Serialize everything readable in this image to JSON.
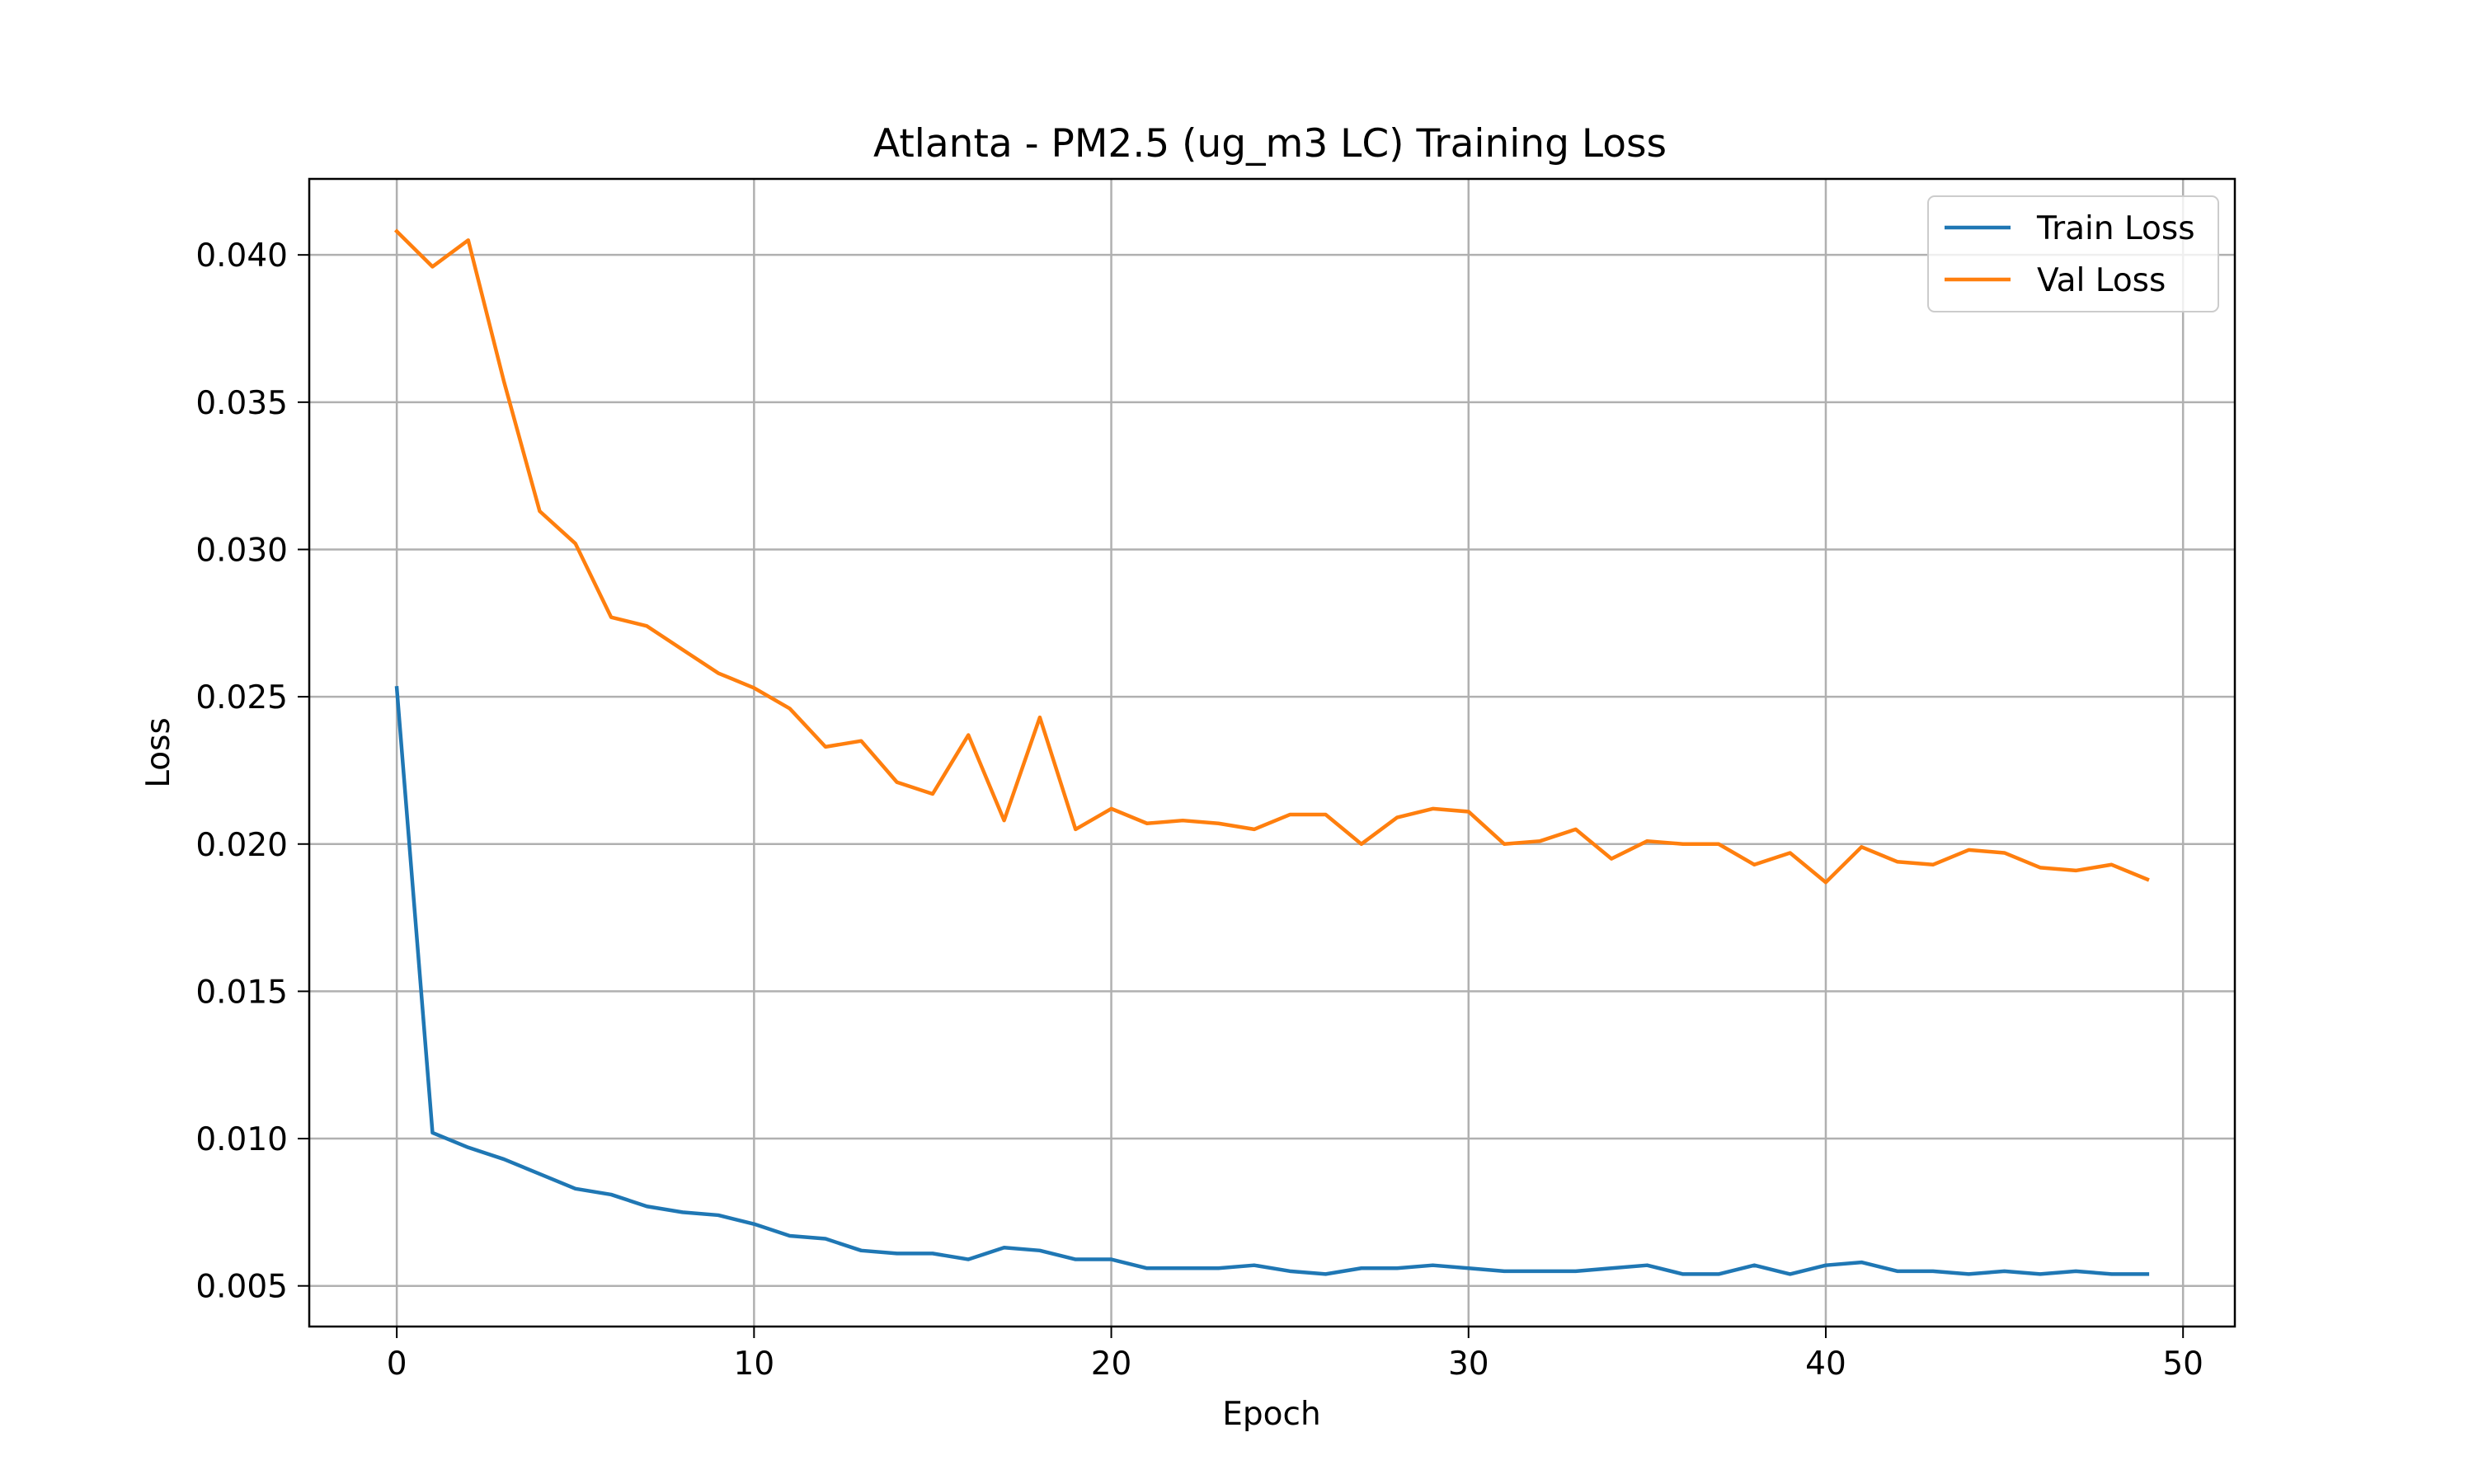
{
  "chart_data": {
    "type": "line",
    "title": "Atlanta - PM2.5 (ug_m3 LC) Training Loss",
    "xlabel": "Epoch",
    "ylabel": "Loss",
    "xlim": [
      -2.45,
      51.45
    ],
    "ylim": [
      0.00362,
      0.04258
    ],
    "xticks": [
      0,
      10,
      20,
      30,
      40,
      50
    ],
    "yticks": [
      0.005,
      0.01,
      0.015,
      0.02,
      0.025,
      0.03,
      0.035,
      0.04
    ],
    "ytick_labels": [
      "0.005",
      "0.010",
      "0.015",
      "0.020",
      "0.025",
      "0.030",
      "0.035",
      "0.040"
    ],
    "grid": true,
    "legend_position": "top-right",
    "x": [
      0,
      1,
      2,
      3,
      4,
      5,
      6,
      7,
      8,
      9,
      10,
      11,
      12,
      13,
      14,
      15,
      16,
      17,
      18,
      19,
      20,
      21,
      22,
      23,
      24,
      25,
      26,
      27,
      28,
      29,
      30,
      31,
      32,
      33,
      34,
      35,
      36,
      37,
      38,
      39,
      40,
      41,
      42,
      43,
      44,
      45,
      46,
      47,
      48,
      49
    ],
    "series": [
      {
        "name": "Train Loss",
        "color": "#1f77b4",
        "values": [
          0.0253,
          0.0102,
          0.0097,
          0.0093,
          0.0088,
          0.0083,
          0.0081,
          0.0077,
          0.0075,
          0.0074,
          0.0071,
          0.0067,
          0.0066,
          0.0062,
          0.0061,
          0.0061,
          0.0059,
          0.0063,
          0.0062,
          0.0059,
          0.0059,
          0.0056,
          0.0056,
          0.0056,
          0.0057,
          0.0055,
          0.0054,
          0.0056,
          0.0056,
          0.0057,
          0.0056,
          0.0055,
          0.0055,
          0.0055,
          0.0056,
          0.0057,
          0.0054,
          0.0054,
          0.0057,
          0.0054,
          0.0057,
          0.0058,
          0.0055,
          0.0055,
          0.0054,
          0.0055,
          0.0054,
          0.0055,
          0.0054,
          0.0054
        ]
      },
      {
        "name": "Val Loss",
        "color": "#ff7f0e",
        "values": [
          0.0408,
          0.0396,
          0.0405,
          0.0357,
          0.0313,
          0.0302,
          0.0277,
          0.0274,
          0.0266,
          0.0258,
          0.0253,
          0.0246,
          0.0233,
          0.0235,
          0.0221,
          0.0217,
          0.0237,
          0.0208,
          0.0243,
          0.0205,
          0.0212,
          0.0207,
          0.0208,
          0.0207,
          0.0205,
          0.021,
          0.021,
          0.02,
          0.0209,
          0.0212,
          0.0211,
          0.02,
          0.0201,
          0.0205,
          0.0195,
          0.0201,
          0.02,
          0.02,
          0.0193,
          0.0197,
          0.0187,
          0.0199,
          0.0194,
          0.0193,
          0.0198,
          0.0197,
          0.0192,
          0.0191,
          0.0193,
          0.0188
        ]
      }
    ]
  }
}
